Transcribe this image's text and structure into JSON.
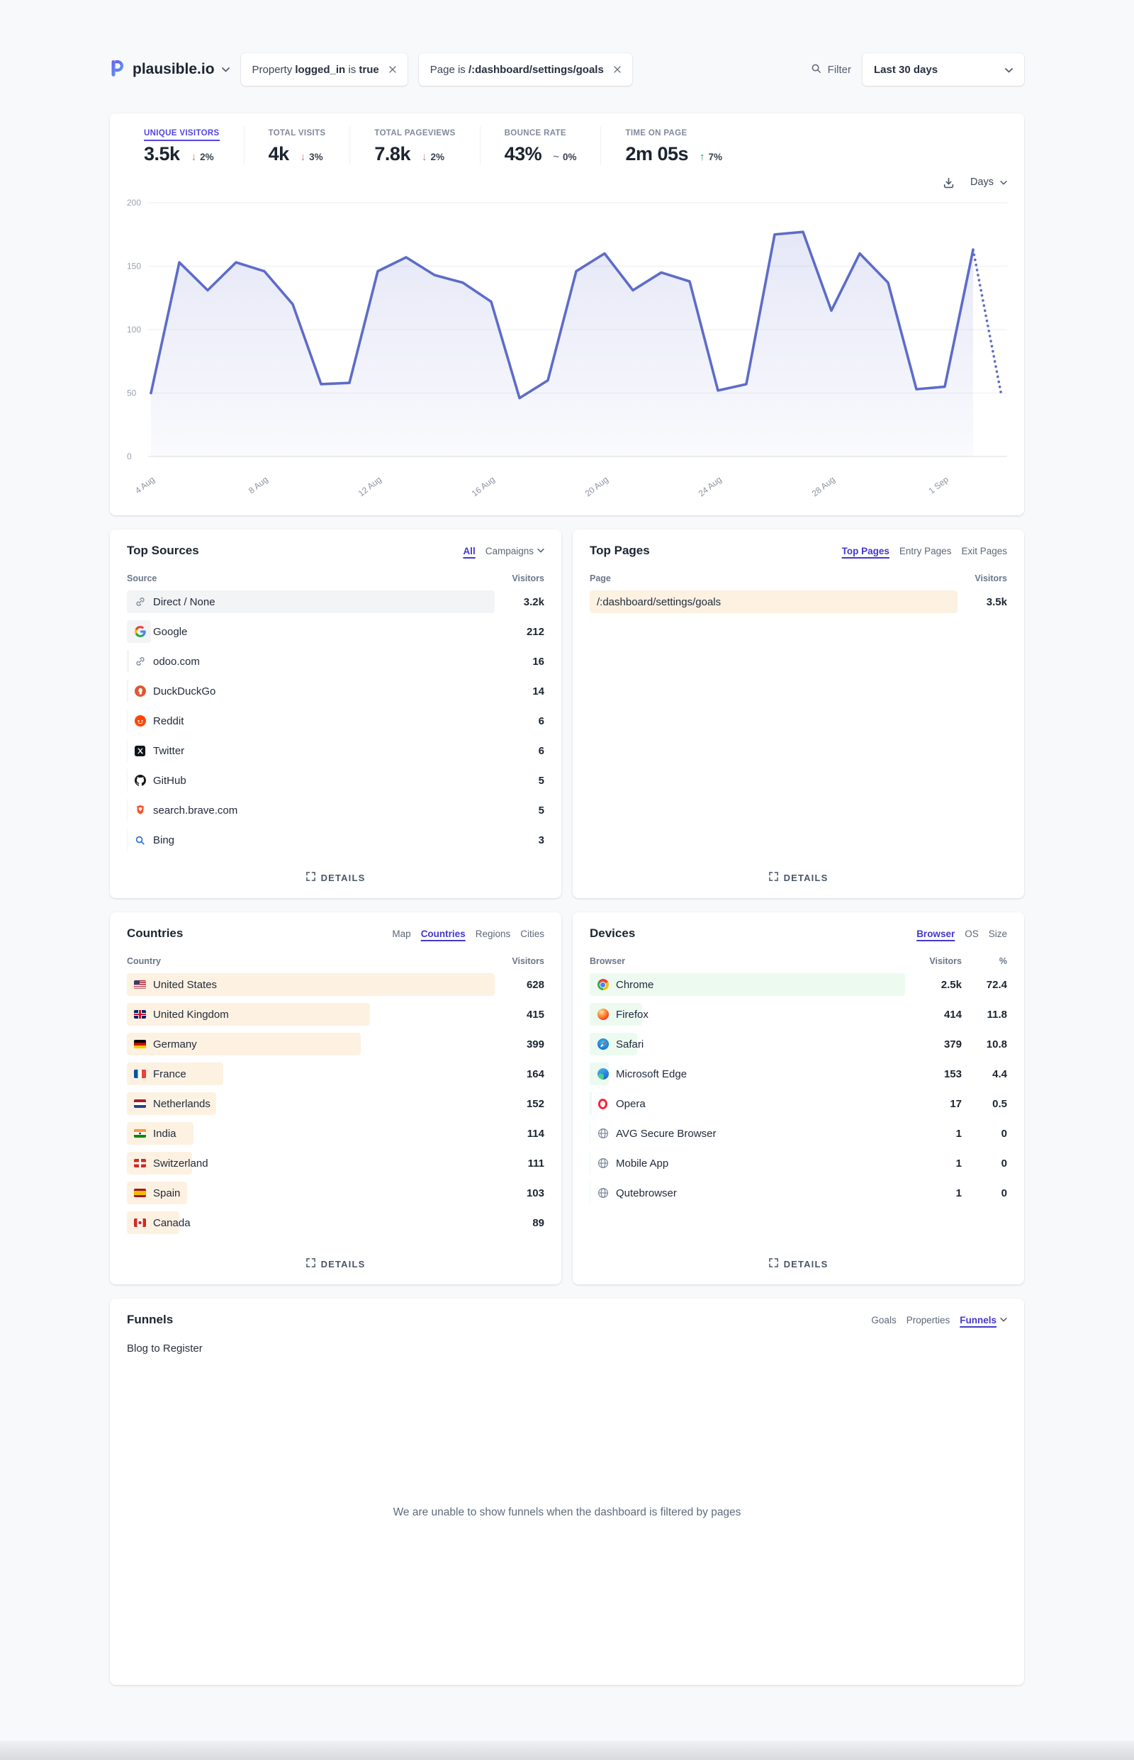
{
  "ui": {
    "details_label": "DETAILS"
  },
  "header": {
    "site_name": "plausible.io",
    "filter_pills": [
      {
        "parts": [
          "Property ",
          "logged_in",
          " is ",
          "true"
        ]
      },
      {
        "parts": [
          "Page is ",
          "/:dashboard/settings/goals"
        ]
      }
    ],
    "filter_button": "Filter",
    "date_range": "Last 30 days"
  },
  "stats": {
    "items": [
      {
        "label": "UNIQUE VISITORS",
        "value": "3.5k",
        "arrow": "↓",
        "change": "2%",
        "dir": "down",
        "active": true
      },
      {
        "label": "TOTAL VISITS",
        "value": "4k",
        "arrow": "↓",
        "change": "3%",
        "dir": "down",
        "active": false
      },
      {
        "label": "TOTAL PAGEVIEWS",
        "value": "7.8k",
        "arrow": "↓",
        "change": "2%",
        "dir": "down",
        "active": false
      },
      {
        "label": "BOUNCE RATE",
        "value": "43%",
        "arrow": "~",
        "change": "0%",
        "dir": "flat",
        "active": false
      },
      {
        "label": "TIME ON PAGE",
        "value": "2m 05s",
        "arrow": "↑",
        "change": "7%",
        "dir": "up",
        "active": false
      }
    ]
  },
  "chart": {
    "interval_label": "Days"
  },
  "chart_data": {
    "type": "area",
    "title": "Unique visitors — last 30 days",
    "x": [
      "4 Aug",
      "5 Aug",
      "6 Aug",
      "7 Aug",
      "8 Aug",
      "9 Aug",
      "10 Aug",
      "11 Aug",
      "12 Aug",
      "13 Aug",
      "14 Aug",
      "15 Aug",
      "16 Aug",
      "17 Aug",
      "18 Aug",
      "19 Aug",
      "20 Aug",
      "21 Aug",
      "22 Aug",
      "23 Aug",
      "24 Aug",
      "25 Aug",
      "26 Aug",
      "27 Aug",
      "28 Aug",
      "29 Aug",
      "30 Aug",
      "31 Aug",
      "1 Sep",
      "2 Sep",
      "3 Sep"
    ],
    "values": [
      50,
      153,
      131,
      153,
      146,
      120,
      57,
      58,
      146,
      157,
      143,
      137,
      122,
      46,
      60,
      146,
      160,
      131,
      145,
      138,
      52,
      57,
      175,
      177,
      115,
      160,
      137,
      53,
      55,
      163,
      48
    ],
    "dashed_from_index": 29,
    "x_tick_labels": [
      "4 Aug",
      "8 Aug",
      "12 Aug",
      "16 Aug",
      "20 Aug",
      "24 Aug",
      "28 Aug",
      "1 Sep"
    ],
    "x_tick_indices": [
      0,
      4,
      8,
      12,
      16,
      20,
      24,
      28
    ],
    "y_ticks": [
      0,
      50,
      100,
      150,
      200
    ],
    "ylim": [
      0,
      200
    ],
    "line_color": "#5d6cc9",
    "fill_color_top": "rgba(93,108,201,0.16)",
    "fill_color_bottom": "rgba(93,108,201,0.03)",
    "legend": "off",
    "grid": "horizontal"
  },
  "sources": {
    "title": "Top Sources",
    "tabs": [
      "All",
      "Campaigns"
    ],
    "active_tab": "All",
    "col_name": "Source",
    "col_value": "Visitors",
    "max": 3200,
    "rows": [
      {
        "name": "Direct / None",
        "icon": "link",
        "visitors": 3200,
        "display": "3.2k"
      },
      {
        "name": "Google",
        "icon": "google",
        "visitors": 212,
        "display": "212"
      },
      {
        "name": "odoo.com",
        "icon": "link",
        "visitors": 16,
        "display": "16"
      },
      {
        "name": "DuckDuckGo",
        "icon": "duckduckgo",
        "visitors": 14,
        "display": "14"
      },
      {
        "name": "Reddit",
        "icon": "reddit",
        "visitors": 6,
        "display": "6"
      },
      {
        "name": "Twitter",
        "icon": "twitter",
        "visitors": 6,
        "display": "6"
      },
      {
        "name": "GitHub",
        "icon": "github",
        "visitors": 5,
        "display": "5"
      },
      {
        "name": "search.brave.com",
        "icon": "brave",
        "visitors": 5,
        "display": "5"
      },
      {
        "name": "Bing",
        "icon": "bing",
        "visitors": 3,
        "display": "3"
      }
    ]
  },
  "pages": {
    "title": "Top Pages",
    "tabs": [
      "Top Pages",
      "Entry Pages",
      "Exit Pages"
    ],
    "active_tab": "Top Pages",
    "col_name": "Page",
    "col_value": "Visitors",
    "max": 3500,
    "rows": [
      {
        "name": "/:dashboard/settings/goals",
        "visitors": 3500,
        "display": "3.5k"
      }
    ]
  },
  "countries": {
    "title": "Countries",
    "tabs": [
      "Map",
      "Countries",
      "Regions",
      "Cities"
    ],
    "active_tab": "Countries",
    "col_name": "Country",
    "col_value": "Visitors",
    "max": 628,
    "rows": [
      {
        "name": "United States",
        "flag": "us",
        "visitors": 628,
        "display": "628"
      },
      {
        "name": "United Kingdom",
        "flag": "gb",
        "visitors": 415,
        "display": "415"
      },
      {
        "name": "Germany",
        "flag": "de",
        "visitors": 399,
        "display": "399"
      },
      {
        "name": "France",
        "flag": "fr",
        "visitors": 164,
        "display": "164"
      },
      {
        "name": "Netherlands",
        "flag": "nl",
        "visitors": 152,
        "display": "152"
      },
      {
        "name": "India",
        "flag": "in",
        "visitors": 114,
        "display": "114"
      },
      {
        "name": "Switzerland",
        "flag": "ch",
        "visitors": 111,
        "display": "111"
      },
      {
        "name": "Spain",
        "flag": "es",
        "visitors": 103,
        "display": "103"
      },
      {
        "name": "Canada",
        "flag": "ca",
        "visitors": 89,
        "display": "89"
      }
    ]
  },
  "devices": {
    "title": "Devices",
    "tabs": [
      "Browser",
      "OS",
      "Size"
    ],
    "active_tab": "Browser",
    "col_name": "Browser",
    "col_value": "Visitors",
    "col_pct": "%",
    "max": 2500,
    "rows": [
      {
        "name": "Chrome",
        "icon": "chrome",
        "visitors": 2500,
        "display": "2.5k",
        "pct": "72.4"
      },
      {
        "name": "Firefox",
        "icon": "firefox",
        "visitors": 414,
        "display": "414",
        "pct": "11.8"
      },
      {
        "name": "Safari",
        "icon": "safari",
        "visitors": 379,
        "display": "379",
        "pct": "10.8"
      },
      {
        "name": "Microsoft Edge",
        "icon": "edge",
        "visitors": 153,
        "display": "153",
        "pct": "4.4"
      },
      {
        "name": "Opera",
        "icon": "opera",
        "visitors": 17,
        "display": "17",
        "pct": "0.5"
      },
      {
        "name": "AVG Secure Browser",
        "icon": "globe",
        "visitors": 1,
        "display": "1",
        "pct": "0"
      },
      {
        "name": "Mobile App",
        "icon": "globe",
        "visitors": 1,
        "display": "1",
        "pct": "0"
      },
      {
        "name": "Qutebrowser",
        "icon": "globe",
        "visitors": 1,
        "display": "1",
        "pct": "0"
      }
    ]
  },
  "funnels": {
    "title": "Funnels",
    "selected": "Blog to Register",
    "tabs": [
      "Goals",
      "Properties",
      "Funnels"
    ],
    "active_tab": "Funnels",
    "message": "We are unable to show funnels when the dashboard is filtered by pages"
  }
}
